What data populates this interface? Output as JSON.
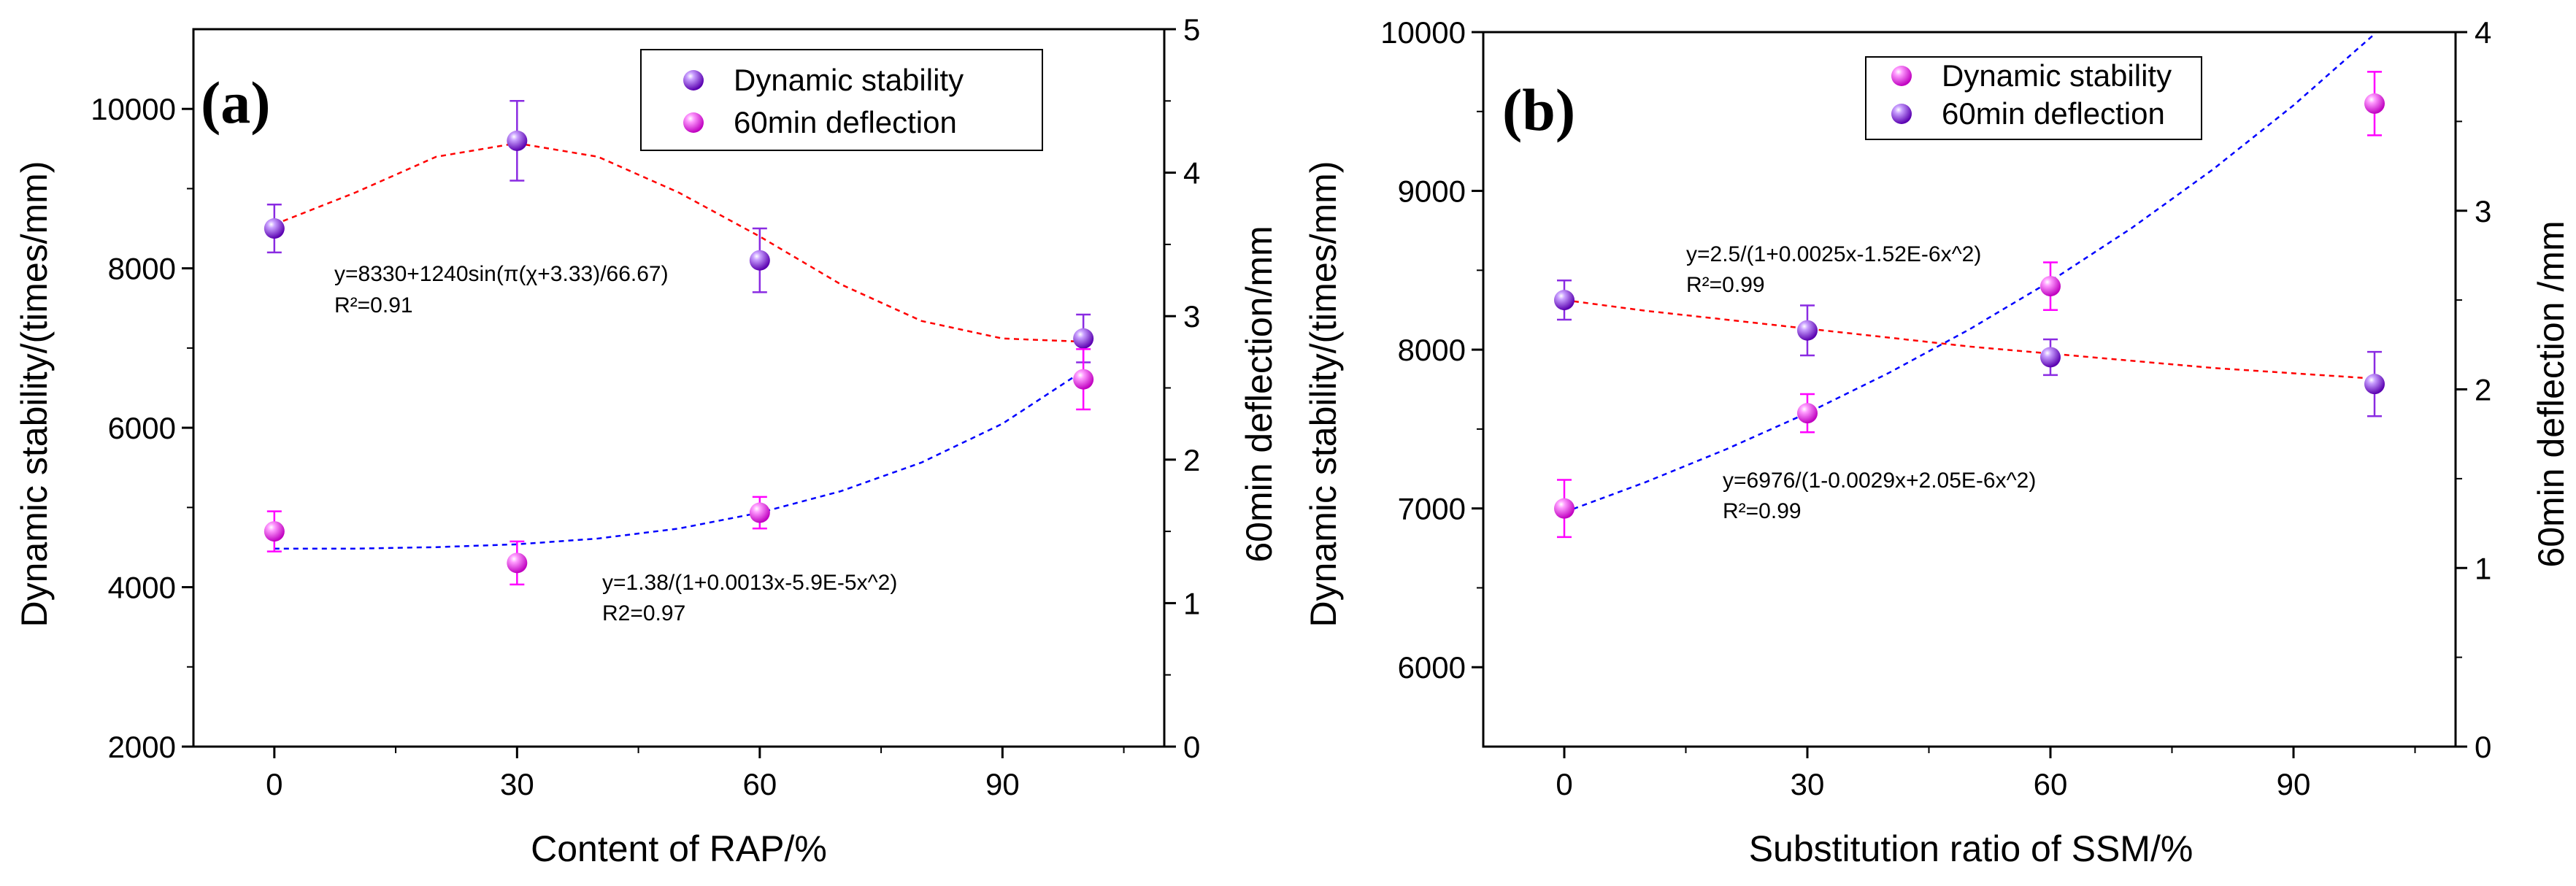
{
  "chart_data": [
    {
      "type": "scatter",
      "panel_label": "(a)",
      "xlabel": "Content of RAP/%",
      "ylabel": "Dynamic stability/(times/mm)",
      "y2label": "60min deflection/mm",
      "xlim": [
        -10,
        110
      ],
      "ylim": [
        2000,
        11000
      ],
      "y2lim": [
        0,
        5
      ],
      "xticks": [
        0,
        30,
        60,
        90
      ],
      "yticks": [
        2000,
        4000,
        6000,
        8000,
        10000
      ],
      "y2ticks": [
        0,
        1,
        2,
        3,
        4,
        5
      ],
      "legend_position": "top-right",
      "series": [
        {
          "name": "Dynamic stability",
          "axis": "left",
          "marker_color": "#8a2be2",
          "x": [
            0,
            30,
            60,
            100
          ],
          "y": [
            8500,
            9600,
            8100,
            7120
          ],
          "err": [
            300,
            500,
            400,
            300
          ]
        },
        {
          "name": "60min deflection",
          "axis": "right",
          "marker_color": "#ff00ff",
          "x": [
            0,
            30,
            60,
            100
          ],
          "y": [
            1.5,
            1.28,
            1.63,
            2.56
          ],
          "err": [
            0.14,
            0.15,
            0.11,
            0.21
          ]
        }
      ],
      "fits": [
        {
          "color": "#ff0000",
          "axis": "left",
          "x": [
            0,
            10,
            20,
            30,
            40,
            50,
            60,
            70,
            80,
            90,
            100
          ],
          "y": [
            8550,
            8950,
            9400,
            9570,
            9400,
            8950,
            8400,
            7800,
            7340,
            7120,
            7080
          ]
        },
        {
          "color": "#0000ff",
          "axis": "right",
          "x": [
            0,
            10,
            20,
            30,
            40,
            50,
            60,
            70,
            80,
            90,
            100
          ],
          "y": [
            1.38,
            1.38,
            1.39,
            1.41,
            1.45,
            1.52,
            1.63,
            1.78,
            1.98,
            2.25,
            2.62
          ]
        }
      ],
      "annotations": [
        {
          "lines": [
            "y=8330+1240sin(π(χ+3.33)/66.67)",
            "R²=0.91"
          ]
        },
        {
          "lines": [
            "y=1.38/(1+0.0013x-5.9E-5x^2)",
            "R2=0.97"
          ]
        }
      ]
    },
    {
      "type": "scatter",
      "panel_label": "(b)",
      "xlabel": "Substitution ratio of SSM/%",
      "ylabel": "Dynamic stability/(times/mm)",
      "y2label": "60min deflection /mm",
      "xlim": [
        -10,
        110
      ],
      "ylim": [
        5500,
        10000
      ],
      "y2lim": [
        0,
        4
      ],
      "xticks": [
        0,
        30,
        60,
        90
      ],
      "yticks": [
        6000,
        7000,
        8000,
        9000,
        10000
      ],
      "y2ticks": [
        0,
        1,
        2,
        3,
        4
      ],
      "legend_position": "top-center",
      "series": [
        {
          "name": "Dynamic stability",
          "axis": "left",
          "marker_color": "#ff00ff",
          "x": [
            0,
            30,
            60,
            100
          ],
          "y": [
            7000,
            7600,
            8400,
            9550
          ],
          "err": [
            180,
            120,
            150,
            200
          ]
        },
        {
          "name": "60min deflection",
          "axis": "right",
          "marker_color": "#8a2be2",
          "x": [
            0,
            30,
            60,
            100
          ],
          "y": [
            2.5,
            2.33,
            2.18,
            2.03
          ],
          "err": [
            0.11,
            0.14,
            0.1,
            0.18
          ]
        }
      ],
      "fits": [
        {
          "color": "#0000ff",
          "axis": "left",
          "x": [
            0,
            10,
            20,
            30,
            40,
            50,
            60,
            70,
            80,
            90,
            100
          ],
          "y": [
            6976,
            7165,
            7373,
            7601,
            7852,
            8128,
            8431,
            8765,
            9133,
            9539,
            9988
          ]
        },
        {
          "color": "#ff0000",
          "axis": "right",
          "x": [
            0,
            10,
            20,
            30,
            40,
            50,
            60,
            70,
            80,
            90,
            100
          ],
          "y": [
            2.5,
            2.44,
            2.39,
            2.34,
            2.29,
            2.24,
            2.2,
            2.16,
            2.12,
            2.09,
            2.06
          ]
        }
      ],
      "annotations": [
        {
          "lines": [
            "y=2.5/(1+0.0025x-1.52E-6x^2)",
            "R²=0.99"
          ]
        },
        {
          "lines": [
            "y=6976/(1-0.0029x+2.05E-6x^2)",
            "R²=0.99"
          ]
        }
      ]
    }
  ]
}
